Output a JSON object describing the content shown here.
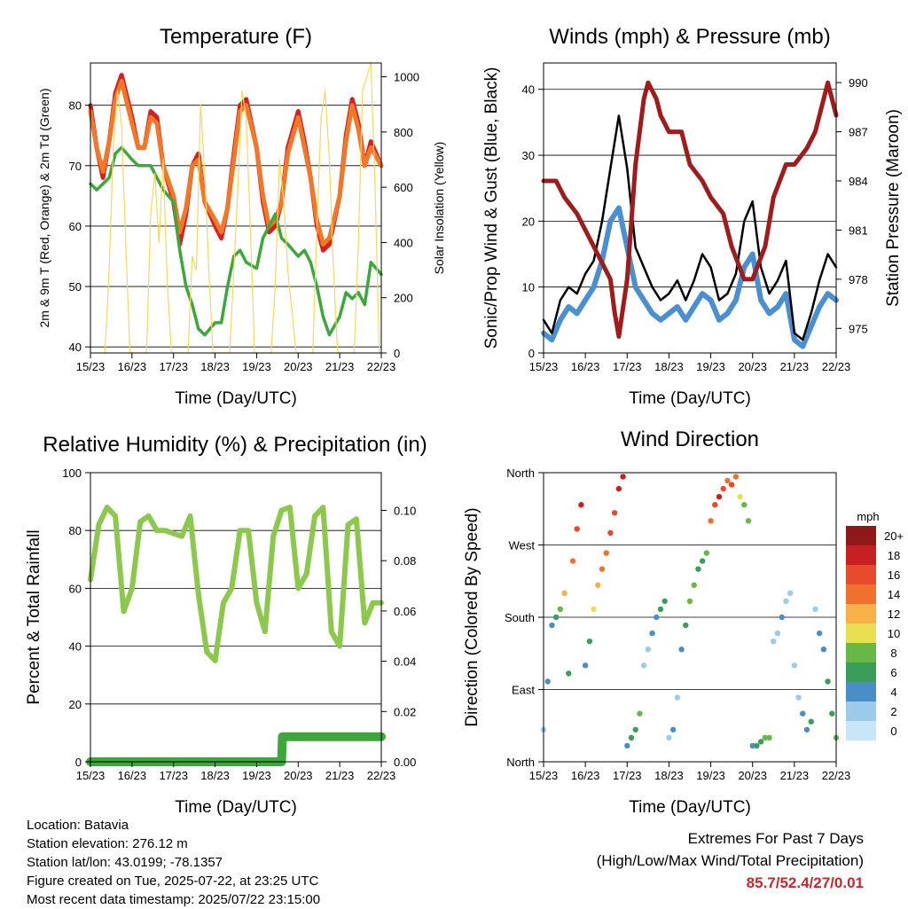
{
  "chart_data": [
    {
      "type": "line",
      "title": "Temperature (F)",
      "xlabel": "Time (Day/UTC)",
      "ylabel": "2m & 9m T (Red, Orange) & 2m Td (Green)",
      "y2label": "Solar Insolation (Yellow)",
      "xticks": [
        "15/23",
        "16/23",
        "17/23",
        "18/23",
        "19/23",
        "20/23",
        "21/23",
        "22/23"
      ],
      "ylim": [
        39,
        87
      ],
      "yticks": [
        40,
        50,
        60,
        70,
        80
      ],
      "y2lim": [
        0,
        1050
      ],
      "y2ticks": [
        0,
        200,
        400,
        600,
        800,
        1000
      ],
      "grid": true,
      "series": [
        {
          "color": "#d62020",
          "x": [
            0,
            0.15,
            0.3,
            0.45,
            0.6,
            0.75,
            1,
            1.15,
            1.3,
            1.45,
            1.6,
            1.75,
            2,
            2.15,
            2.3,
            2.45,
            2.6,
            2.75,
            3,
            3.15,
            3.3,
            3.45,
            3.6,
            3.75,
            4,
            4.15,
            4.3,
            4.45,
            4.6,
            4.75,
            5,
            5.15,
            5.3,
            5.45,
            5.6,
            5.75,
            6,
            6.15,
            6.3,
            6.45,
            6.6,
            6.75,
            7
          ],
          "values": [
            80,
            73,
            68,
            74,
            82,
            85,
            78,
            73,
            73,
            79,
            78,
            70,
            64,
            57,
            62,
            70,
            72,
            64,
            60,
            58,
            63,
            72,
            80,
            81,
            73,
            64,
            59,
            60,
            64,
            73,
            79,
            74,
            68,
            60,
            56,
            57,
            65,
            75,
            81,
            77,
            70,
            74,
            70
          ]
        },
        {
          "color": "#f07828",
          "x": [
            0,
            0.15,
            0.3,
            0.45,
            0.6,
            0.75,
            1,
            1.15,
            1.3,
            1.45,
            1.6,
            1.75,
            2,
            2.15,
            2.3,
            2.45,
            2.6,
            2.75,
            3,
            3.15,
            3.3,
            3.45,
            3.6,
            3.75,
            4,
            4.15,
            4.3,
            4.45,
            4.6,
            4.75,
            5,
            5.15,
            5.3,
            5.45,
            5.6,
            5.75,
            6,
            6.15,
            6.3,
            6.45,
            6.6,
            6.75,
            7
          ],
          "values": [
            79,
            73,
            69,
            74,
            81,
            84,
            77,
            73,
            73,
            78,
            77,
            70,
            65,
            59,
            63,
            70,
            71,
            64,
            61,
            59,
            63,
            71,
            79,
            80,
            73,
            65,
            60,
            61,
            64,
            72,
            78,
            73,
            68,
            61,
            57,
            58,
            65,
            74,
            80,
            76,
            70,
            73,
            70
          ]
        },
        {
          "color": "#3ca83c",
          "x": [
            0,
            0.15,
            0.3,
            0.45,
            0.6,
            0.75,
            1,
            1.15,
            1.3,
            1.45,
            1.6,
            1.75,
            2,
            2.15,
            2.3,
            2.45,
            2.6,
            2.75,
            3,
            3.15,
            3.3,
            3.45,
            3.6,
            3.75,
            4,
            4.15,
            4.3,
            4.45,
            4.6,
            4.75,
            5,
            5.15,
            5.3,
            5.45,
            5.6,
            5.75,
            6,
            6.15,
            6.3,
            6.45,
            6.6,
            6.75,
            7
          ],
          "values": [
            67,
            66,
            67,
            68,
            72,
            73,
            71,
            70,
            70,
            70,
            68,
            66,
            64,
            56,
            50,
            47,
            43,
            42,
            44,
            44,
            50,
            55,
            56,
            54,
            53,
            58,
            60,
            62,
            58,
            57,
            55,
            56,
            54,
            50,
            45,
            42,
            45,
            49,
            48,
            49,
            47,
            54,
            52
          ]
        },
        {
          "color": "#f5d860",
          "x": [
            0.35,
            0.45,
            0.55,
            0.65,
            0.75,
            0.85,
            0.95,
            1.35,
            1.45,
            1.55,
            1.65,
            1.75,
            1.85,
            1.95,
            2.35,
            2.45,
            2.55,
            2.65,
            2.75,
            2.85,
            2.95,
            3.35,
            3.45,
            3.55,
            3.65,
            3.75,
            3.85,
            3.95,
            4.35,
            4.45,
            4.55,
            4.65,
            4.75,
            4.85,
            4.95,
            5.35,
            5.45,
            5.55,
            5.65,
            5.75,
            5.85,
            5.95,
            6.35,
            6.45,
            6.55,
            6.65,
            6.75,
            6.85,
            6.95
          ],
          "values": [
            0,
            300,
            750,
            950,
            820,
            400,
            0,
            0,
            500,
            650,
            400,
            700,
            250,
            0,
            0,
            350,
            300,
            900,
            650,
            300,
            0,
            0,
            300,
            600,
            950,
            850,
            450,
            0,
            0,
            250,
            700,
            550,
            300,
            150,
            0,
            0,
            450,
            850,
            950,
            700,
            300,
            0,
            0,
            400,
            950,
            1000,
            1050,
            600,
            0
          ]
        }
      ]
    },
    {
      "type": "line",
      "title": "Winds (mph) & Pressure (mb)",
      "xlabel": "Time (Day/UTC)",
      "ylabel": "Sonic/Prop Wind & Gust (Blue, Black)",
      "y2label": "Station Pressure (Maroon)",
      "xticks": [
        "15/23",
        "16/23",
        "17/23",
        "18/23",
        "19/23",
        "20/23",
        "21/23",
        "22/23"
      ],
      "ylim": [
        0,
        44
      ],
      "yticks": [
        0,
        10,
        20,
        30,
        40
      ],
      "y2lim": [
        973.5,
        991.2
      ],
      "y2ticks": [
        975,
        978,
        981,
        984,
        987,
        990
      ],
      "grid": true,
      "series": [
        {
          "color": "#4a90d0",
          "x": [
            0,
            0.2,
            0.4,
            0.6,
            0.8,
            1,
            1.2,
            1.4,
            1.6,
            1.8,
            2,
            2.2,
            2.4,
            2.6,
            2.8,
            3,
            3.2,
            3.4,
            3.6,
            3.8,
            4,
            4.2,
            4.4,
            4.6,
            4.8,
            5,
            5.2,
            5.4,
            5.6,
            5.8,
            6,
            6.2,
            6.4,
            6.6,
            6.8,
            7
          ],
          "values": [
            3,
            2,
            5,
            7,
            6,
            8,
            10,
            14,
            20,
            22,
            16,
            10,
            8,
            6,
            5,
            6,
            7,
            5,
            7,
            9,
            8,
            5,
            6,
            8,
            13,
            15,
            8,
            6,
            7,
            9,
            2,
            1,
            4,
            7,
            9,
            8
          ]
        },
        {
          "color": "#000000",
          "x": [
            0,
            0.2,
            0.4,
            0.6,
            0.8,
            1,
            1.2,
            1.4,
            1.6,
            1.8,
            2,
            2.2,
            2.4,
            2.6,
            2.8,
            3,
            3.2,
            3.4,
            3.6,
            3.8,
            4,
            4.2,
            4.4,
            4.6,
            4.8,
            5,
            5.2,
            5.4,
            5.6,
            5.8,
            6,
            6.2,
            6.4,
            6.6,
            6.8,
            7
          ],
          "values": [
            5,
            3,
            8,
            10,
            9,
            12,
            14,
            20,
            28,
            36,
            28,
            16,
            13,
            10,
            8,
            9,
            11,
            8,
            11,
            15,
            13,
            8,
            9,
            12,
            20,
            23,
            13,
            9,
            11,
            14,
            3,
            2,
            6,
            11,
            15,
            13
          ]
        },
        {
          "color": "#a01c1c",
          "x": [
            0,
            0.3,
            0.5,
            0.8,
            1,
            1.2,
            1.4,
            1.6,
            1.7,
            1.8,
            2,
            2.2,
            2.4,
            2.5,
            2.7,
            2.8,
            3,
            3.3,
            3.5,
            3.8,
            4,
            4.3,
            4.5,
            4.8,
            5,
            5.3,
            5.5,
            5.8,
            6,
            6.3,
            6.5,
            6.7,
            6.8,
            7
          ],
          "values": [
            984,
            984,
            983,
            982,
            981,
            980,
            979,
            978,
            976,
            974.5,
            978,
            985,
            989,
            990,
            989,
            988,
            987,
            987,
            985,
            984,
            983,
            982,
            980,
            978,
            978,
            980,
            983,
            985,
            985,
            986,
            987,
            989,
            990,
            988
          ]
        }
      ]
    },
    {
      "type": "line",
      "title": "Relative Humidity (%) & Precipitation (in)",
      "xlabel": "Time (Day/UTC)",
      "ylabel": "Percent & Total Rainfall",
      "xticks": [
        "15/23",
        "16/23",
        "17/23",
        "18/23",
        "19/23",
        "20/23",
        "21/23",
        "22/23"
      ],
      "ylim": [
        0,
        100
      ],
      "yticks": [
        0,
        20,
        40,
        60,
        80,
        100
      ],
      "y2lim": [
        0,
        0.115
      ],
      "y2ticks": [
        "0.00",
        "0.02",
        "0.04",
        "0.06",
        "0.08",
        "0.10"
      ],
      "grid": true,
      "series": [
        {
          "color": "#8cc84b",
          "x": [
            0,
            0.2,
            0.4,
            0.6,
            0.8,
            1,
            1.2,
            1.4,
            1.6,
            1.8,
            2,
            2.2,
            2.4,
            2.6,
            2.8,
            3,
            3.2,
            3.4,
            3.6,
            3.8,
            4,
            4.2,
            4.4,
            4.6,
            4.8,
            5,
            5.2,
            5.4,
            5.6,
            5.8,
            6,
            6.2,
            6.4,
            6.6,
            6.8,
            7
          ],
          "values": [
            63,
            82,
            88,
            85,
            52,
            60,
            83,
            85,
            80,
            80,
            79,
            78,
            85,
            58,
            38,
            35,
            55,
            60,
            80,
            80,
            55,
            45,
            78,
            87,
            88,
            60,
            65,
            85,
            88,
            45,
            40,
            82,
            84,
            48,
            55,
            55
          ]
        },
        {
          "color": "#3ca83c",
          "x": [
            0,
            1,
            2,
            3,
            4,
            4.6,
            4.62,
            5,
            6,
            7
          ],
          "values": [
            0,
            0,
            0,
            0,
            0,
            0,
            0.01,
            0.01,
            0.01,
            0.01
          ]
        }
      ]
    },
    {
      "type": "scatter",
      "title": "Wind Direction",
      "xlabel": "Time (Day/UTC)",
      "ylabel": "Direction (Colored By Speed)",
      "xticks": [
        "15/23",
        "16/23",
        "17/23",
        "18/23",
        "19/23",
        "20/23",
        "21/23",
        "22/23"
      ],
      "yticks": [
        "North",
        "East",
        "South",
        "West",
        "North"
      ],
      "ylim": [
        0,
        360
      ],
      "grid": true,
      "colorbar": {
        "title": "mph",
        "labels": [
          "0",
          "2",
          "4",
          "6",
          "8",
          "10",
          "12",
          "14",
          "16",
          "18",
          "20+"
        ],
        "colors": [
          "#c8e6f8",
          "#9ccaeb",
          "#4a8ec8",
          "#3c9c5c",
          "#68b848",
          "#e8e050",
          "#f8b048",
          "#f07030",
          "#e84a2c",
          "#c82020",
          "#901818"
        ]
      },
      "series": [
        {
          "x": [
            0,
            0.1,
            0.2,
            0.3,
            0.4,
            0.5,
            0.6,
            0.7,
            0.8,
            0.9,
            1.0,
            1.1,
            1.2,
            1.3,
            1.4,
            1.5,
            1.6,
            1.7,
            1.8,
            1.9,
            2.0,
            2.1,
            2.2,
            2.3,
            2.4,
            2.5,
            2.6,
            2.7,
            2.8,
            2.9,
            3.0,
            3.1,
            3.2,
            3.3,
            3.4,
            3.5,
            3.6,
            3.7,
            3.8,
            3.9,
            4.0,
            4.1,
            4.2,
            4.3,
            4.4,
            4.5,
            4.6,
            4.7,
            4.8,
            4.9,
            5.0,
            5.1,
            5.2,
            5.3,
            5.4,
            5.5,
            5.6,
            5.7,
            5.8,
            5.9,
            6.0,
            6.1,
            6.2,
            6.3,
            6.4,
            6.5,
            6.6,
            6.7,
            6.8,
            6.9,
            7.0
          ],
          "values": [
            40,
            100,
            170,
            180,
            190,
            210,
            110,
            250,
            290,
            320,
            120,
            150,
            190,
            220,
            240,
            260,
            285,
            310,
            340,
            355,
            20,
            30,
            40,
            60,
            120,
            140,
            160,
            180,
            190,
            200,
            30,
            40,
            80,
            140,
            170,
            200,
            220,
            240,
            250,
            260,
            300,
            320,
            330,
            340,
            350,
            345,
            355,
            330,
            320,
            300,
            20,
            20,
            25,
            30,
            30,
            150,
            160,
            180,
            200,
            210,
            120,
            80,
            60,
            40,
            50,
            190,
            160,
            140,
            100,
            60,
            30
          ],
          "speed": [
            3,
            4,
            4,
            6,
            8,
            12,
            6,
            14,
            17,
            19,
            5,
            6,
            10,
            12,
            14,
            15,
            16,
            17,
            18,
            19,
            5,
            6,
            7,
            8,
            3,
            3,
            4,
            5,
            6,
            7,
            3,
            4,
            3,
            4,
            6,
            8,
            9,
            7,
            6,
            9,
            14,
            16,
            18,
            17,
            15,
            16,
            14,
            10,
            9,
            8,
            5,
            6,
            7,
            8,
            9,
            2,
            3,
            4,
            2,
            3,
            3,
            2,
            4,
            5,
            6,
            3,
            4,
            5,
            6,
            7,
            8
          ]
        }
      ]
    }
  ],
  "info": {
    "location": "Location: Batavia",
    "elevation": "Station elevation: 276.12 m",
    "latlon": "Station lat/lon: 43.0199; -78.1357",
    "created": "Figure created on Tue, 2025-07-22, at 23:25 UTC",
    "recent": "Most recent data timestamp: 2025/07/22 23:15:00"
  },
  "extremes": {
    "line1": "Extremes For Past 7 Days",
    "line2": "(High/Low/Max Wind/Total Precipitation)",
    "values": "85.7/52.4/27/0.01"
  }
}
